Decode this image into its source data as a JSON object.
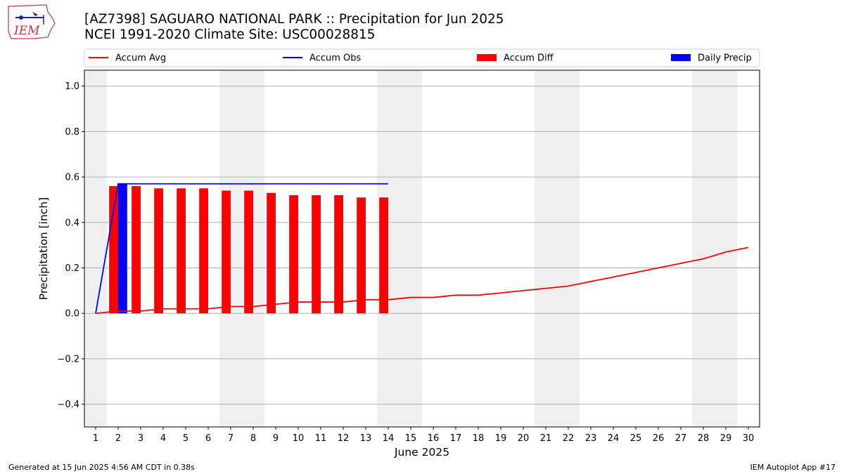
{
  "header": {
    "title_line1": "[AZ7398] SAGUARO NATIONAL PARK :: Precipitation for Jun 2025",
    "title_line2": "NCEI 1991-2020 Climate Site: USC00028815"
  },
  "logo": {
    "text": "IEM",
    "icon": "iem-logo-icon"
  },
  "footer": {
    "left": "Generated at 15 Jun 2025 4:56 AM CDT in 0.38s",
    "right": "IEM Autoplot App #17"
  },
  "chart_data": {
    "type": "bar",
    "xlabel": "June 2025",
    "ylabel": "Precipitation [inch]",
    "xlim": [
      0.5,
      30.5
    ],
    "ylim": [
      -0.5,
      1.07
    ],
    "yticks": [
      -0.4,
      -0.2,
      0.0,
      0.2,
      0.4,
      0.6,
      0.8,
      1.0
    ],
    "ytick_labels": [
      "−0.4",
      "−0.2",
      "0.0",
      "0.2",
      "0.4",
      "0.6",
      "0.8",
      "1.0"
    ],
    "x": [
      1,
      2,
      3,
      4,
      5,
      6,
      7,
      8,
      9,
      10,
      11,
      12,
      13,
      14,
      15,
      16,
      17,
      18,
      19,
      20,
      21,
      22,
      23,
      24,
      25,
      26,
      27,
      28,
      29,
      30
    ],
    "x_labels": [
      "1",
      "2",
      "3",
      "4",
      "5",
      "6",
      "7",
      "8",
      "9",
      "10",
      "11",
      "12",
      "13",
      "14",
      "15",
      "16",
      "17",
      "18",
      "19",
      "20",
      "21",
      "22",
      "23",
      "24",
      "25",
      "26",
      "27",
      "28",
      "29",
      "30"
    ],
    "weekend_shading": [
      [
        0.5,
        1.5
      ],
      [
        6.5,
        8.5
      ],
      [
        13.5,
        15.5
      ],
      [
        20.5,
        22.5
      ],
      [
        27.5,
        29.5
      ]
    ],
    "grid": true,
    "legend_position": "top",
    "series": [
      {
        "name": "Accum Avg",
        "kind": "line",
        "color": "#ff0000",
        "x": [
          1,
          2,
          3,
          4,
          5,
          6,
          7,
          8,
          9,
          10,
          11,
          12,
          13,
          14,
          15,
          16,
          17,
          18,
          19,
          20,
          21,
          22,
          23,
          24,
          25,
          26,
          27,
          28,
          29,
          30
        ],
        "values": [
          0.0,
          0.01,
          0.01,
          0.02,
          0.02,
          0.02,
          0.03,
          0.03,
          0.04,
          0.05,
          0.05,
          0.05,
          0.06,
          0.06,
          0.07,
          0.07,
          0.08,
          0.08,
          0.09,
          0.1,
          0.11,
          0.12,
          0.14,
          0.16,
          0.18,
          0.2,
          0.22,
          0.24,
          0.27,
          0.29
        ]
      },
      {
        "name": "Accum Obs",
        "kind": "line",
        "color": "#0000ff",
        "x": [
          1,
          2,
          3,
          4,
          5,
          6,
          7,
          8,
          9,
          10,
          11,
          12,
          13,
          14
        ],
        "values": [
          0.0,
          0.57,
          0.57,
          0.57,
          0.57,
          0.57,
          0.57,
          0.57,
          0.57,
          0.57,
          0.57,
          0.57,
          0.57,
          0.57
        ]
      },
      {
        "name": "Accum Diff",
        "kind": "bar",
        "color": "#ff0000",
        "x": [
          2,
          3,
          4,
          5,
          6,
          7,
          8,
          9,
          10,
          11,
          12,
          13,
          14
        ],
        "values": [
          0.56,
          0.56,
          0.55,
          0.55,
          0.55,
          0.54,
          0.54,
          0.53,
          0.52,
          0.52,
          0.52,
          0.51,
          0.51
        ]
      },
      {
        "name": "Daily Precip",
        "kind": "bar",
        "color": "#0000ff",
        "x": [
          2
        ],
        "values": [
          0.57
        ]
      }
    ]
  }
}
